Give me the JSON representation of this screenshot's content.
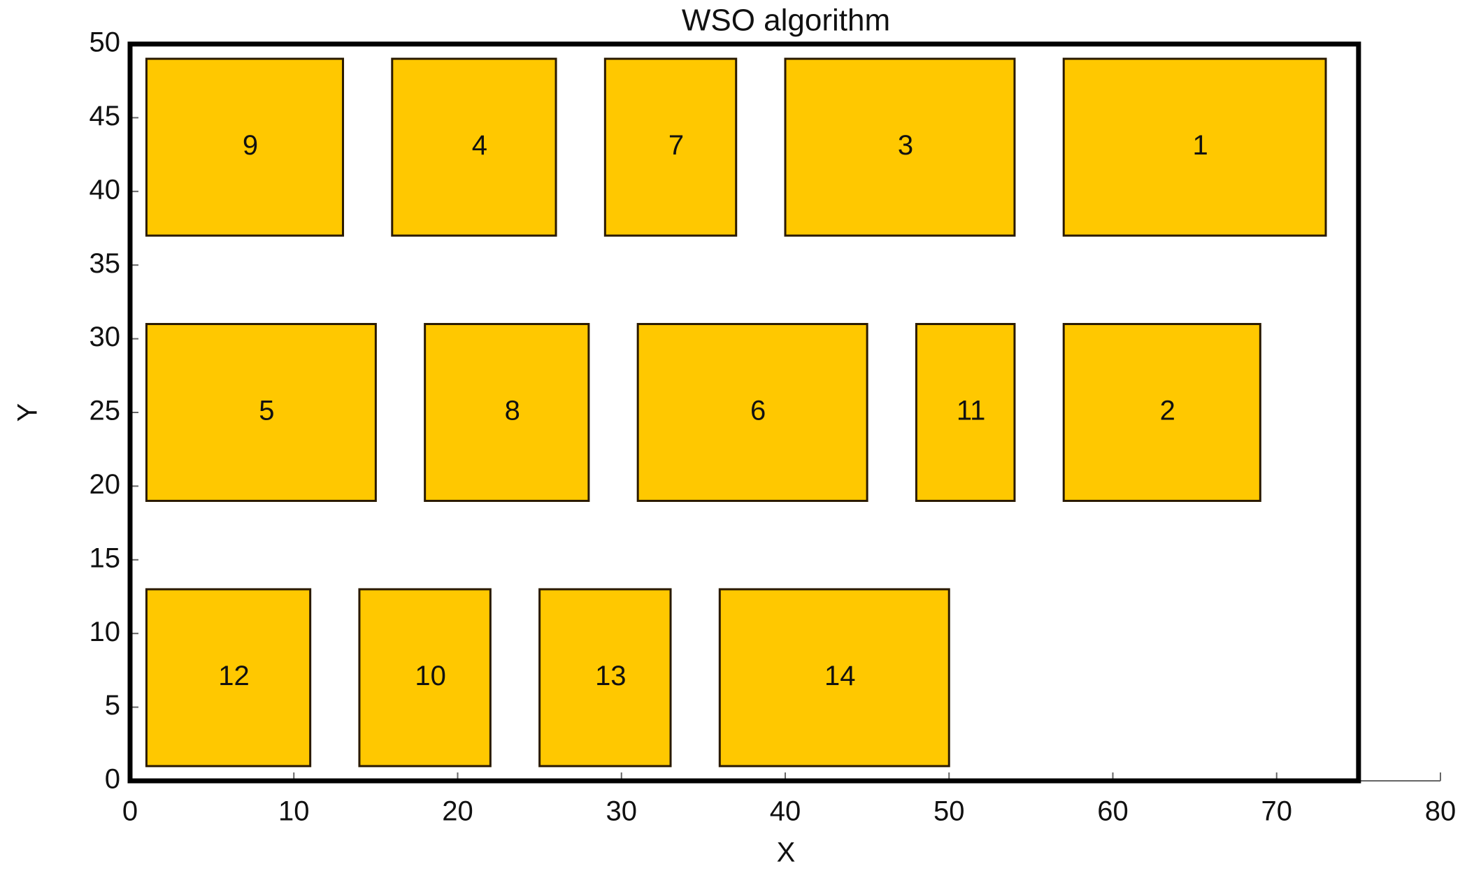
{
  "chart_data": {
    "type": "layout",
    "title": "WSO algorithm",
    "xlabel": "X",
    "ylabel": "Y",
    "xlim": [
      0,
      80
    ],
    "ylim": [
      0,
      50
    ],
    "xticks": [
      0,
      10,
      20,
      30,
      40,
      50,
      60,
      70,
      80
    ],
    "yticks": [
      0,
      5,
      10,
      15,
      20,
      25,
      30,
      35,
      40,
      45,
      50
    ],
    "color": "#ffc800",
    "boundary": {
      "width": 75,
      "height": 50
    },
    "rects": [
      {
        "label": "9",
        "x": 1,
        "y": 37,
        "width": 12,
        "height": 12
      },
      {
        "label": "4",
        "x": 16,
        "y": 37,
        "width": 10,
        "height": 12
      },
      {
        "label": "7",
        "x": 29,
        "y": 37,
        "width": 8,
        "height": 12
      },
      {
        "label": "3",
        "x": 40,
        "y": 37,
        "width": 14,
        "height": 12
      },
      {
        "label": "1",
        "x": 57,
        "y": 37,
        "width": 16,
        "height": 12
      },
      {
        "label": "5",
        "x": 1,
        "y": 19,
        "width": 14,
        "height": 12
      },
      {
        "label": "8",
        "x": 18,
        "y": 19,
        "width": 10,
        "height": 12
      },
      {
        "label": "6",
        "x": 31,
        "y": 19,
        "width": 14,
        "height": 12
      },
      {
        "label": "11",
        "x": 48,
        "y": 19,
        "width": 6,
        "height": 12
      },
      {
        "label": "2",
        "x": 57,
        "y": 19,
        "width": 12,
        "height": 12
      },
      {
        "label": "12",
        "x": 1,
        "y": 1,
        "width": 10,
        "height": 12
      },
      {
        "label": "10",
        "x": 14,
        "y": 1,
        "width": 8,
        "height": 12
      },
      {
        "label": "13",
        "x": 25,
        "y": 1,
        "width": 8,
        "height": 12
      },
      {
        "label": "14",
        "x": 36,
        "y": 1,
        "width": 14,
        "height": 12
      }
    ]
  }
}
